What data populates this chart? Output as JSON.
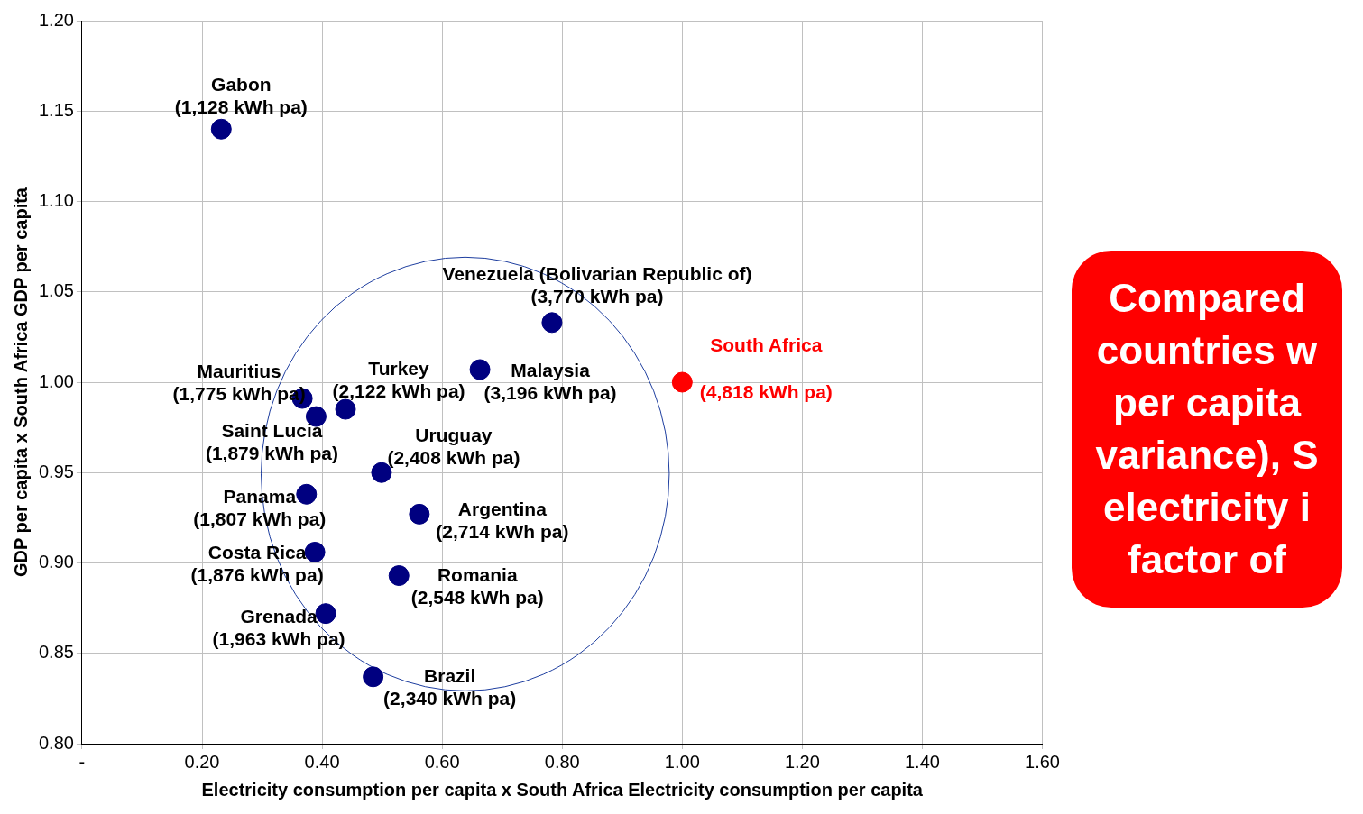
{
  "chart_data": {
    "type": "scatter",
    "xlabel": "Electricity consumption per capita x South Africa Electricity consumption per capita",
    "ylabel": "GDP per capita x South Africa GDP per capita",
    "xlim": [
      0,
      1.6
    ],
    "xticks": [
      {
        "value": 0,
        "label": "-"
      },
      {
        "value": 0.2,
        "label": "0.20"
      },
      {
        "value": 0.4,
        "label": "0.40"
      },
      {
        "value": 0.6,
        "label": "0.60"
      },
      {
        "value": 0.8,
        "label": "0.80"
      },
      {
        "value": 1,
        "label": "1.00"
      },
      {
        "value": 1.2,
        "label": "1.20"
      },
      {
        "value": 1.4,
        "label": "1.40"
      },
      {
        "value": 1.6,
        "label": "1.60"
      }
    ],
    "ylim": [
      0.8,
      1.2
    ],
    "yticks": [
      {
        "value": 0.8,
        "label": "0.80"
      },
      {
        "value": 0.85,
        "label": "0.85"
      },
      {
        "value": 0.9,
        "label": "0.90"
      },
      {
        "value": 0.95,
        "label": "0.95"
      },
      {
        "value": 1,
        "label": "1.00"
      },
      {
        "value": 1.05,
        "label": "1.05"
      },
      {
        "value": 1.1,
        "label": "1.10"
      },
      {
        "value": 1.15,
        "label": "1.15"
      },
      {
        "value": 1.2,
        "label": "1.20"
      }
    ],
    "grid": true,
    "marker": "circle",
    "legend": false,
    "series": [
      {
        "color": "#000080",
        "x": [
          0.232,
          0.783,
          0.663,
          0.367,
          0.39,
          0.439,
          0.499,
          0.374,
          0.562,
          0.388,
          0.528,
          0.406,
          0.485
        ],
        "values": [
          1.14,
          1.033,
          1.007,
          0.991,
          0.981,
          0.985,
          0.95,
          0.938,
          0.927,
          0.906,
          0.893,
          0.872,
          0.837
        ]
      },
      {
        "color": "#ff0000",
        "x": [
          1.0
        ],
        "values": [
          1.0
        ]
      }
    ],
    "annotations": [
      "Compared\ncountries w\nper capita\nvariance), S\nelectricity i\nfactor of",
      {
        "text": "Gabon\n(1,128 kWh pa)",
        "x": 0.232,
        "y": 1.14
      },
      {
        "text": "Venezuela (Bolivarian Republic of)\n(3,770 kWh pa)",
        "x": 0.783,
        "y": 1.033
      },
      {
        "text": "Malaysia\n(3,196 kWh pa)",
        "x": 0.663,
        "y": 1.007
      },
      {
        "text": "Mauritius\n(1,775 kWh pa)",
        "x": 0.367,
        "y": 0.991
      },
      {
        "text": "Saint Lucia\n(1,879 kWh pa)",
        "x": 0.39,
        "y": 0.981
      },
      {
        "text": "Turkey\n(2,122 kWh pa)",
        "x": 0.439,
        "y": 0.985
      },
      {
        "text": "Uruguay\n(2,408 kWh pa)",
        "x": 0.499,
        "y": 0.95
      },
      {
        "text": "Panama\n(1,807 kWh pa)",
        "x": 0.374,
        "y": 0.938
      },
      {
        "text": "Argentina\n(2,714 kWh pa)",
        "x": 0.562,
        "y": 0.927
      },
      {
        "text": "Costa Rica\n(1,876 kWh pa)",
        "x": 0.388,
        "y": 0.906
      },
      {
        "text": "Romania\n(2,548 kWh pa)",
        "x": 0.528,
        "y": 0.893
      },
      {
        "text": "Grenada\n(1,963 kWh pa)",
        "x": 0.406,
        "y": 0.872
      },
      {
        "text": "Brazil\n(2,340 kWh pa)",
        "x": 0.485,
        "y": 0.837
      },
      {
        "text": "South Africa",
        "x": 1.0,
        "y": 1.0
      },
      {
        "text": "(4,818 kWh pa)",
        "x": 1.0,
        "y": 1.0
      }
    ]
  }
}
